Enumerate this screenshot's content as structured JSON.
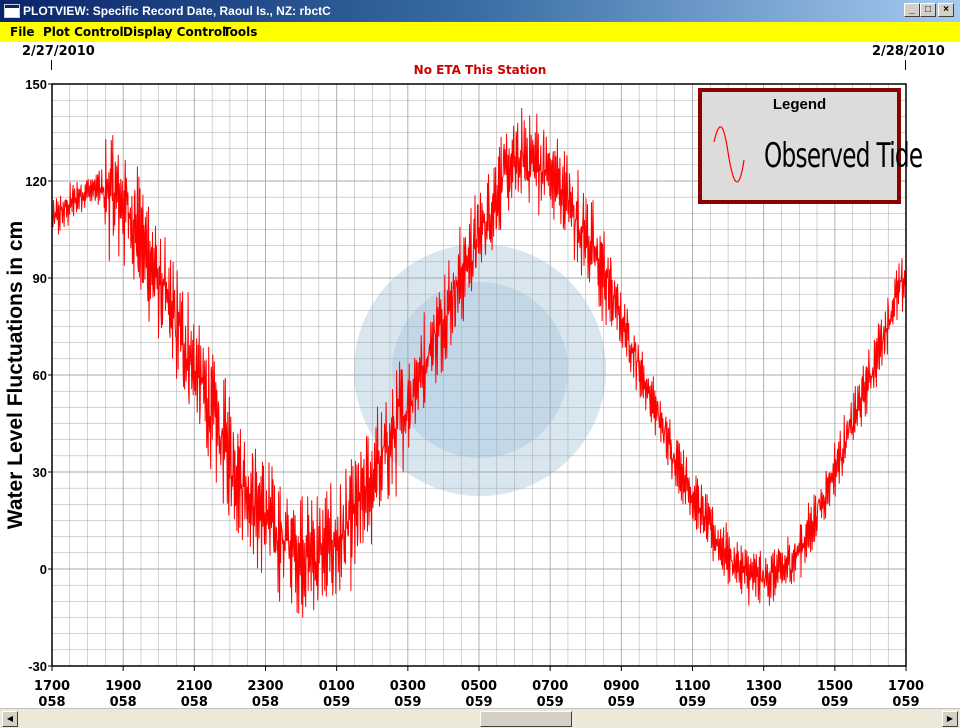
{
  "window": {
    "title": "PLOTVIEW: Specific Record Date, Raoul Is., NZ: rbctC",
    "minimize_label": "_",
    "maximize_label": "□",
    "close_label": "×"
  },
  "menu": {
    "items": [
      "File",
      "Plot Control",
      "Display Control",
      "Tools"
    ]
  },
  "header": {
    "start_date": "2/27/2010",
    "end_date": "2/28/2010",
    "eta_note": "No ETA This Station"
  },
  "legend": {
    "title": "Legend",
    "entry": "Observed Tide"
  },
  "colors": {
    "series": "#ff0000",
    "grid": "#a8a8a8",
    "legend_border": "#8b0000",
    "menu_bar": "#ffff00"
  },
  "chart_data": {
    "type": "line",
    "ylabel": "Water Level Fluctuations in cm",
    "xlabel": "",
    "title": "",
    "ylim": [
      -30,
      150
    ],
    "yticks": [
      -30,
      0,
      30,
      60,
      90,
      120,
      150
    ],
    "xlim": [
      "1700 058",
      "1700 059"
    ],
    "xticks": [
      {
        "time": "1700",
        "day": "058"
      },
      {
        "time": "1900",
        "day": "058"
      },
      {
        "time": "2100",
        "day": "058"
      },
      {
        "time": "2300",
        "day": "058"
      },
      {
        "time": "0100",
        "day": "059"
      },
      {
        "time": "0300",
        "day": "059"
      },
      {
        "time": "0500",
        "day": "059"
      },
      {
        "time": "0700",
        "day": "059"
      },
      {
        "time": "0900",
        "day": "059"
      },
      {
        "time": "1100",
        "day": "059"
      },
      {
        "time": "1300",
        "day": "059"
      },
      {
        "time": "1500",
        "day": "059"
      },
      {
        "time": "1700",
        "day": "059"
      }
    ],
    "grid": true,
    "legend_position": "top-right",
    "series": [
      {
        "name": "Observed Tide",
        "color": "#ff0000",
        "points": [
          {
            "t": "1700 058",
            "y": 108
          },
          {
            "t": "1800 058",
            "y": 117
          },
          {
            "t": "1900 058",
            "y": 113
          },
          {
            "t": "2000 058",
            "y": 88
          },
          {
            "t": "2100 058",
            "y": 62
          },
          {
            "t": "2200 058",
            "y": 35
          },
          {
            "t": "2300 058",
            "y": 16
          },
          {
            "t": "0000 059",
            "y": 5
          },
          {
            "t": "0100 059",
            "y": 8
          },
          {
            "t": "0200 059",
            "y": 27
          },
          {
            "t": "0300 059",
            "y": 52
          },
          {
            "t": "0400 059",
            "y": 78
          },
          {
            "t": "0500 059",
            "y": 103
          },
          {
            "t": "0600 059",
            "y": 125
          },
          {
            "t": "0700 059",
            "y": 122
          },
          {
            "t": "0800 059",
            "y": 103
          },
          {
            "t": "0900 059",
            "y": 77
          },
          {
            "t": "1000 059",
            "y": 48
          },
          {
            "t": "1100 059",
            "y": 23
          },
          {
            "t": "1200 059",
            "y": 4
          },
          {
            "t": "1300 059",
            "y": -3
          },
          {
            "t": "1400 059",
            "y": 6
          },
          {
            "t": "1500 059",
            "y": 31
          },
          {
            "t": "1600 059",
            "y": 60
          },
          {
            "t": "1700 059",
            "y": 90
          }
        ]
      }
    ]
  }
}
